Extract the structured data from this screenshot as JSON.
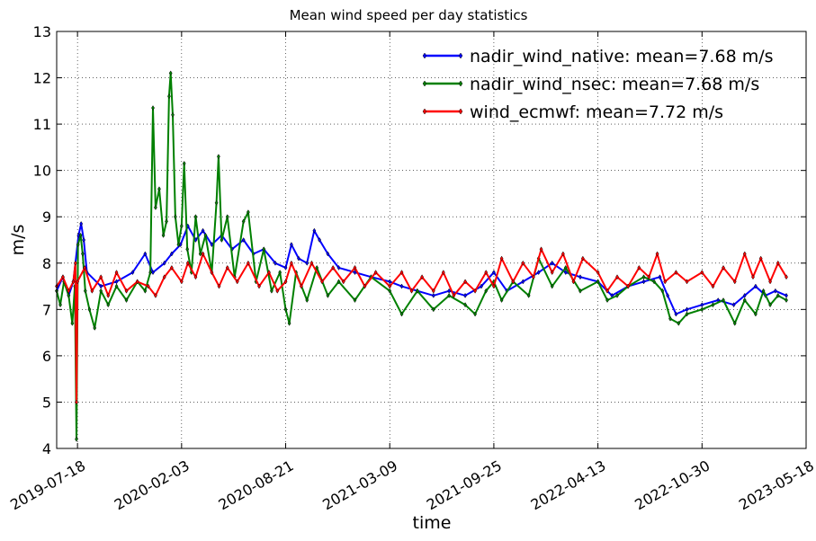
{
  "chart_data": {
    "type": "line",
    "title": "Mean wind speed per day statistics",
    "xlabel": "time",
    "ylabel": "m/s",
    "ylim": [
      4,
      13
    ],
    "xlim": [
      "2019-06-08",
      "2023-05-18"
    ],
    "yticks": [
      4,
      5,
      6,
      7,
      8,
      9,
      10,
      11,
      12,
      13
    ],
    "xticks": [
      "2019-07-18",
      "2020-02-03",
      "2020-08-21",
      "2021-03-09",
      "2021-09-25",
      "2022-04-13",
      "2022-10-30",
      "2023-05-18"
    ],
    "grid": true,
    "legend_position": "top-right",
    "series": [
      {
        "name": "nadir_wind_native: mean=7.68 m/s",
        "color": "#0000ff",
        "points": [
          [
            "2019-06-08",
            7.4
          ],
          [
            "2019-06-20",
            7.7
          ],
          [
            "2019-07-01",
            7.3
          ],
          [
            "2019-07-10",
            7.6
          ],
          [
            "2019-07-20",
            8.6
          ],
          [
            "2019-07-25",
            8.85
          ],
          [
            "2019-07-30",
            8.5
          ],
          [
            "2019-08-05",
            7.8
          ],
          [
            "2019-09-01",
            7.5
          ],
          [
            "2019-10-01",
            7.6
          ],
          [
            "2019-11-01",
            7.8
          ],
          [
            "2019-11-25",
            8.2
          ],
          [
            "2019-12-10",
            7.8
          ],
          [
            "2020-01-01",
            8.0
          ],
          [
            "2020-01-15",
            8.2
          ],
          [
            "2020-02-01",
            8.4
          ],
          [
            "2020-02-15",
            8.8
          ],
          [
            "2020-03-01",
            8.5
          ],
          [
            "2020-03-15",
            8.7
          ],
          [
            "2020-04-01",
            8.4
          ],
          [
            "2020-04-20",
            8.6
          ],
          [
            "2020-05-10",
            8.3
          ],
          [
            "2020-06-01",
            8.5
          ],
          [
            "2020-06-20",
            8.2
          ],
          [
            "2020-07-10",
            8.3
          ],
          [
            "2020-08-01",
            8.0
          ],
          [
            "2020-08-21",
            7.9
          ],
          [
            "2020-09-01",
            8.4
          ],
          [
            "2020-09-15",
            8.1
          ],
          [
            "2020-10-01",
            8.0
          ],
          [
            "2020-10-15",
            8.7
          ],
          [
            "2020-10-25",
            8.5
          ],
          [
            "2020-11-10",
            8.2
          ],
          [
            "2020-12-01",
            7.9
          ],
          [
            "2021-01-01",
            7.8
          ],
          [
            "2021-02-01",
            7.7
          ],
          [
            "2021-03-09",
            7.6
          ],
          [
            "2021-04-01",
            7.5
          ],
          [
            "2021-05-01",
            7.4
          ],
          [
            "2021-06-01",
            7.3
          ],
          [
            "2021-07-01",
            7.4
          ],
          [
            "2021-08-01",
            7.3
          ],
          [
            "2021-09-01",
            7.5
          ],
          [
            "2021-09-25",
            7.8
          ],
          [
            "2021-10-20",
            7.4
          ],
          [
            "2021-11-20",
            7.6
          ],
          [
            "2021-12-20",
            7.8
          ],
          [
            "2022-01-15",
            8.0
          ],
          [
            "2022-02-10",
            7.8
          ],
          [
            "2022-03-10",
            7.7
          ],
          [
            "2022-04-13",
            7.6
          ],
          [
            "2022-05-10",
            7.3
          ],
          [
            "2022-06-10",
            7.5
          ],
          [
            "2022-07-10",
            7.6
          ],
          [
            "2022-08-10",
            7.7
          ],
          [
            "2022-08-25",
            7.3
          ],
          [
            "2022-09-10",
            6.9
          ],
          [
            "2022-10-01",
            7.0
          ],
          [
            "2022-10-30",
            7.1
          ],
          [
            "2022-11-30",
            7.2
          ],
          [
            "2022-12-30",
            7.1
          ],
          [
            "2023-01-20",
            7.3
          ],
          [
            "2023-02-10",
            7.5
          ],
          [
            "2023-03-01",
            7.3
          ],
          [
            "2023-03-20",
            7.4
          ],
          [
            "2023-04-10",
            7.3
          ]
        ]
      },
      {
        "name": "nadir_wind_nsec: mean=7.68 m/s",
        "color": "#008000",
        "points": [
          [
            "2019-06-08",
            7.4
          ],
          [
            "2019-06-15",
            7.1
          ],
          [
            "2019-06-22",
            7.6
          ],
          [
            "2019-07-01",
            7.3
          ],
          [
            "2019-07-08",
            6.7
          ],
          [
            "2019-07-13",
            7.5
          ],
          [
            "2019-07-16",
            4.2
          ],
          [
            "2019-07-19",
            8.4
          ],
          [
            "2019-07-24",
            8.6
          ],
          [
            "2019-07-28",
            8.2
          ],
          [
            "2019-08-02",
            7.4
          ],
          [
            "2019-08-10",
            7.0
          ],
          [
            "2019-08-20",
            6.6
          ],
          [
            "2019-09-01",
            7.4
          ],
          [
            "2019-09-15",
            7.1
          ],
          [
            "2019-10-01",
            7.5
          ],
          [
            "2019-10-20",
            7.2
          ],
          [
            "2019-11-10",
            7.6
          ],
          [
            "2019-11-25",
            7.4
          ],
          [
            "2019-12-05",
            7.8
          ],
          [
            "2019-12-10",
            11.35
          ],
          [
            "2019-12-15",
            9.2
          ],
          [
            "2019-12-22",
            9.6
          ],
          [
            "2019-12-30",
            8.6
          ],
          [
            "2020-01-05",
            8.9
          ],
          [
            "2020-01-10",
            11.6
          ],
          [
            "2020-01-13",
            12.1
          ],
          [
            "2020-01-17",
            11.2
          ],
          [
            "2020-01-22",
            9.0
          ],
          [
            "2020-01-28",
            8.4
          ],
          [
            "2020-02-03",
            8.8
          ],
          [
            "2020-02-08",
            10.15
          ],
          [
            "2020-02-14",
            8.3
          ],
          [
            "2020-02-22",
            7.8
          ],
          [
            "2020-03-01",
            9.0
          ],
          [
            "2020-03-10",
            8.2
          ],
          [
            "2020-03-20",
            8.6
          ],
          [
            "2020-04-01",
            7.8
          ],
          [
            "2020-04-10",
            9.3
          ],
          [
            "2020-04-14",
            10.3
          ],
          [
            "2020-04-20",
            8.5
          ],
          [
            "2020-05-01",
            9.0
          ],
          [
            "2020-05-15",
            7.7
          ],
          [
            "2020-06-01",
            8.9
          ],
          [
            "2020-06-10",
            9.1
          ],
          [
            "2020-06-25",
            7.6
          ],
          [
            "2020-07-10",
            8.3
          ],
          [
            "2020-07-25",
            7.4
          ],
          [
            "2020-08-10",
            7.8
          ],
          [
            "2020-08-21",
            7.0
          ],
          [
            "2020-08-28",
            6.7
          ],
          [
            "2020-09-10",
            7.8
          ],
          [
            "2020-10-01",
            7.2
          ],
          [
            "2020-10-20",
            7.9
          ],
          [
            "2020-11-10",
            7.3
          ],
          [
            "2020-12-01",
            7.6
          ],
          [
            "2021-01-01",
            7.2
          ],
          [
            "2021-02-01",
            7.7
          ],
          [
            "2021-03-09",
            7.4
          ],
          [
            "2021-04-01",
            6.9
          ],
          [
            "2021-05-01",
            7.4
          ],
          [
            "2021-06-01",
            7.0
          ],
          [
            "2021-07-01",
            7.3
          ],
          [
            "2021-08-01",
            7.1
          ],
          [
            "2021-08-20",
            6.9
          ],
          [
            "2021-09-10",
            7.4
          ],
          [
            "2021-09-25",
            7.6
          ],
          [
            "2021-10-10",
            7.2
          ],
          [
            "2021-11-01",
            7.6
          ],
          [
            "2021-12-01",
            7.3
          ],
          [
            "2021-12-20",
            8.1
          ],
          [
            "2022-01-15",
            7.5
          ],
          [
            "2022-02-10",
            7.9
          ],
          [
            "2022-03-10",
            7.4
          ],
          [
            "2022-04-13",
            7.6
          ],
          [
            "2022-05-01",
            7.2
          ],
          [
            "2022-05-20",
            7.3
          ],
          [
            "2022-06-10",
            7.5
          ],
          [
            "2022-07-10",
            7.7
          ],
          [
            "2022-07-30",
            7.6
          ],
          [
            "2022-08-15",
            7.4
          ],
          [
            "2022-08-30",
            6.8
          ],
          [
            "2022-09-15",
            6.7
          ],
          [
            "2022-10-01",
            6.9
          ],
          [
            "2022-10-30",
            7.0
          ],
          [
            "2022-11-20",
            7.1
          ],
          [
            "2022-12-10",
            7.2
          ],
          [
            "2023-01-01",
            6.7
          ],
          [
            "2023-01-20",
            7.2
          ],
          [
            "2023-02-10",
            6.9
          ],
          [
            "2023-02-25",
            7.4
          ],
          [
            "2023-03-10",
            7.1
          ],
          [
            "2023-03-25",
            7.3
          ],
          [
            "2023-04-10",
            7.2
          ]
        ]
      },
      {
        "name": "wind_ecmwf: mean=7.72 m/s",
        "color": "#ff0000",
        "points": [
          [
            "2019-06-08",
            7.5
          ],
          [
            "2019-06-20",
            7.7
          ],
          [
            "2019-07-01",
            7.4
          ],
          [
            "2019-07-10",
            7.6
          ],
          [
            "2019-07-14",
            8.0
          ],
          [
            "2019-07-16",
            5.0
          ],
          [
            "2019-07-18",
            7.6
          ],
          [
            "2019-08-01",
            7.9
          ],
          [
            "2019-08-15",
            7.4
          ],
          [
            "2019-09-01",
            7.7
          ],
          [
            "2019-09-15",
            7.3
          ],
          [
            "2019-10-01",
            7.8
          ],
          [
            "2019-10-20",
            7.4
          ],
          [
            "2019-11-10",
            7.6
          ],
          [
            "2019-12-01",
            7.5
          ],
          [
            "2019-12-15",
            7.3
          ],
          [
            "2020-01-01",
            7.7
          ],
          [
            "2020-01-15",
            7.9
          ],
          [
            "2020-02-03",
            7.6
          ],
          [
            "2020-02-15",
            8.0
          ],
          [
            "2020-03-01",
            7.7
          ],
          [
            "2020-03-15",
            8.2
          ],
          [
            "2020-04-01",
            7.8
          ],
          [
            "2020-04-15",
            7.5
          ],
          [
            "2020-05-01",
            7.9
          ],
          [
            "2020-05-20",
            7.6
          ],
          [
            "2020-06-10",
            8.0
          ],
          [
            "2020-07-01",
            7.5
          ],
          [
            "2020-07-20",
            7.8
          ],
          [
            "2020-08-05",
            7.4
          ],
          [
            "2020-08-21",
            7.6
          ],
          [
            "2020-09-01",
            8.0
          ],
          [
            "2020-09-20",
            7.5
          ],
          [
            "2020-10-10",
            8.0
          ],
          [
            "2020-10-30",
            7.6
          ],
          [
            "2020-11-20",
            7.9
          ],
          [
            "2020-12-10",
            7.6
          ],
          [
            "2021-01-01",
            7.9
          ],
          [
            "2021-01-20",
            7.5
          ],
          [
            "2021-02-10",
            7.8
          ],
          [
            "2021-03-09",
            7.5
          ],
          [
            "2021-04-01",
            7.8
          ],
          [
            "2021-04-20",
            7.4
          ],
          [
            "2021-05-10",
            7.7
          ],
          [
            "2021-06-01",
            7.4
          ],
          [
            "2021-06-20",
            7.8
          ],
          [
            "2021-07-10",
            7.3
          ],
          [
            "2021-08-01",
            7.6
          ],
          [
            "2021-08-20",
            7.4
          ],
          [
            "2021-09-10",
            7.8
          ],
          [
            "2021-09-25",
            7.5
          ],
          [
            "2021-10-10",
            8.1
          ],
          [
            "2021-11-01",
            7.6
          ],
          [
            "2021-11-20",
            8.0
          ],
          [
            "2021-12-10",
            7.7
          ],
          [
            "2021-12-25",
            8.3
          ],
          [
            "2022-01-15",
            7.8
          ],
          [
            "2022-02-05",
            8.2
          ],
          [
            "2022-02-25",
            7.6
          ],
          [
            "2022-03-15",
            8.1
          ],
          [
            "2022-04-13",
            7.8
          ],
          [
            "2022-05-01",
            7.4
          ],
          [
            "2022-05-20",
            7.7
          ],
          [
            "2022-06-10",
            7.5
          ],
          [
            "2022-07-01",
            7.9
          ],
          [
            "2022-07-20",
            7.7
          ],
          [
            "2022-08-05",
            8.2
          ],
          [
            "2022-08-20",
            7.6
          ],
          [
            "2022-09-10",
            7.8
          ],
          [
            "2022-10-01",
            7.6
          ],
          [
            "2022-10-30",
            7.8
          ],
          [
            "2022-11-20",
            7.5
          ],
          [
            "2022-12-10",
            7.9
          ],
          [
            "2023-01-01",
            7.6
          ],
          [
            "2023-01-20",
            8.2
          ],
          [
            "2023-02-05",
            7.7
          ],
          [
            "2023-02-20",
            8.1
          ],
          [
            "2023-03-10",
            7.6
          ],
          [
            "2023-03-25",
            8.0
          ],
          [
            "2023-04-10",
            7.7
          ]
        ]
      }
    ]
  }
}
